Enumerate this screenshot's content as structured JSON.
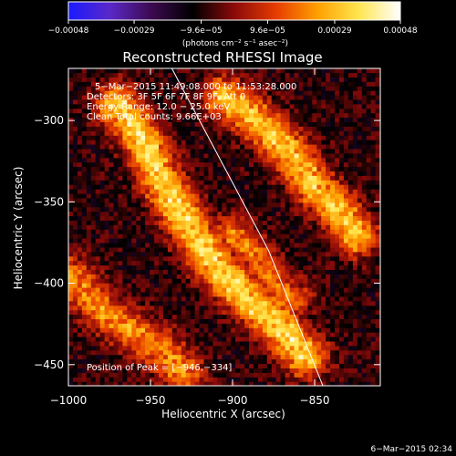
{
  "chart_data": {
    "type": "heatmap",
    "title": "Reconstructed RHESSI Image",
    "xlabel": "Heliocentric X (arcsec)",
    "ylabel": "Heliocentric Y (arcsec)",
    "xlim": [
      -1000,
      -810
    ],
    "ylim": [
      -463,
      -268
    ],
    "x_ticks": [
      -1000,
      -950,
      -900,
      -850
    ],
    "x_tick_labels": [
      "−1000",
      "−950",
      "−900",
      "−850"
    ],
    "y_ticks": [
      -300,
      -350,
      -400,
      -450
    ],
    "y_tick_labels": [
      "−300",
      "−350",
      "−400",
      "−450"
    ],
    "colorbar": {
      "range": [
        -0.00048,
        0.00048
      ],
      "ticks": [
        -0.00048,
        -0.00029,
        -9.6e-05,
        9.6e-05,
        0.00029,
        0.00048
      ],
      "tick_labels": [
        "−0.00048",
        "−0.00029",
        "−9.6e−05",
        "9.6e−05",
        "0.00029",
        "0.00048"
      ],
      "unit_label": "(photons cm⁻² s⁻¹ asec⁻²)",
      "colors": [
        "#1a1aff",
        "#5a28c8",
        "#3c0a50",
        "#000000",
        "#8c0a0a",
        "#e63c00",
        "#ffa000",
        "#ffe650",
        "#ffffff"
      ]
    },
    "annotations": [
      "5−Mar−2015 11:49:08.000 to 11:53:28.000",
      "Detectors: 3F 5F 6F 7F 8F 9F, Att 0",
      "Energy Range: 12.0 − 25.0 keV",
      "Clean     Total counts: 9.66E+03"
    ],
    "peak_label": "Position of Peak = [−946,−334]",
    "limb_line": {
      "x": [
        -937,
        -878,
        -845
      ],
      "y": [
        -268,
        -380,
        -463
      ]
    },
    "emission_ridges": [
      {
        "name": "main ridge",
        "x": [
          -970,
          -955,
          -945,
          -932,
          -920,
          -905,
          -890,
          -870,
          -855
        ],
        "y": [
          -290,
          -310,
          -334,
          -355,
          -375,
          -395,
          -410,
          -428,
          -445
        ],
        "peak": 0.00048
      },
      {
        "name": "left ridge",
        "x": [
          -1000,
          -990,
          -975,
          -960,
          -945,
          -930
        ],
        "y": [
          -395,
          -405,
          -420,
          -430,
          -440,
          -455
        ],
        "peak": 0.00034
      },
      {
        "name": "upper right band",
        "x": [
          -905,
          -885,
          -865,
          -850,
          -835,
          -825
        ],
        "y": [
          -285,
          -300,
          -320,
          -340,
          -355,
          -370
        ],
        "peak": 0.00043
      },
      {
        "name": "lower right band",
        "x": [
          -900,
          -885,
          -875,
          -865
        ],
        "y": [
          -370,
          -385,
          -400,
          -410
        ],
        "peak": 0.0003
      }
    ],
    "background": "#5a1f9c"
  },
  "timestamp": "6−Mar−2015 02:34"
}
